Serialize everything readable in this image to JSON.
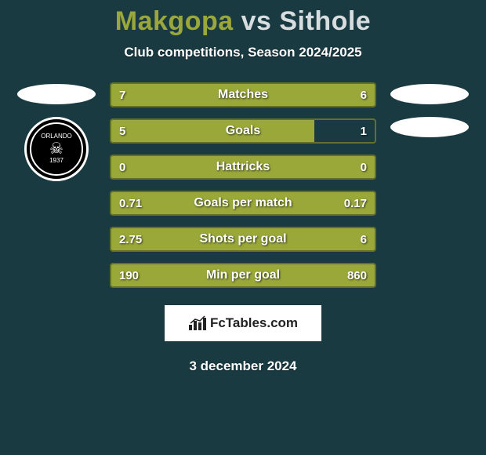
{
  "title": {
    "player1": "Makgopa",
    "vs": "vs",
    "player2": "Sithole"
  },
  "subtitle": "Club competitions, Season 2024/2025",
  "club_logo": {
    "top_text": "ORLANDO",
    "bottom_text": "PIRATES",
    "year": "1937"
  },
  "colors": {
    "background": "#1a3a42",
    "bar_fill": "#9aa83a",
    "bar_border": "#64702a",
    "p1_color": "#9aa83a",
    "p2_color": "#d8dde0",
    "text_white": "#ffffff"
  },
  "stats": [
    {
      "label": "Matches",
      "left_val": "7",
      "right_val": "6",
      "left_pct": 54,
      "right_pct": 46
    },
    {
      "label": "Goals",
      "left_val": "5",
      "right_val": "1",
      "left_pct": 77,
      "right_pct": 0
    },
    {
      "label": "Hattricks",
      "left_val": "0",
      "right_val": "0",
      "left_pct": 100,
      "right_pct": 0
    },
    {
      "label": "Goals per match",
      "left_val": "0.71",
      "right_val": "0.17",
      "left_pct": 100,
      "right_pct": 0
    },
    {
      "label": "Shots per goal",
      "left_val": "2.75",
      "right_val": "6",
      "left_pct": 100,
      "right_pct": 0
    },
    {
      "label": "Min per goal",
      "left_val": "190",
      "right_val": "860",
      "left_pct": 100,
      "right_pct": 0
    }
  ],
  "brand": "FcTables.com",
  "date": "3 december 2024"
}
